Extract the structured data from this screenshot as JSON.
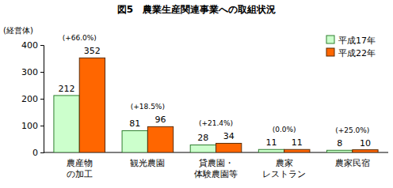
{
  "chart_data": {
    "type": "bar",
    "title": "図5　農業生産関連事業への取組状況",
    "y_label": "(経営体)",
    "categories": [
      "農産物\nの加工",
      "観光農園",
      "貸農園・\n体験農園等",
      "農家\nレストラン",
      "農家民宿"
    ],
    "series": [
      {
        "name": "平成17年",
        "color": "#ccffcc",
        "values": [
          212,
          81,
          28,
          11,
          8
        ]
      },
      {
        "name": "平成22年",
        "color": "#ff6600",
        "values": [
          352,
          96,
          34,
          11,
          10
        ]
      }
    ],
    "annotations": [
      "(+66.0%)",
      "(+18.5%)",
      "(+21.4%)",
      "(0.0%)",
      "(+25.0%)"
    ],
    "ylim": [
      0,
      400
    ],
    "yticks": [
      0,
      100,
      200,
      300,
      400
    ],
    "grid": false,
    "legend": "upper right",
    "data_labels": true
  }
}
